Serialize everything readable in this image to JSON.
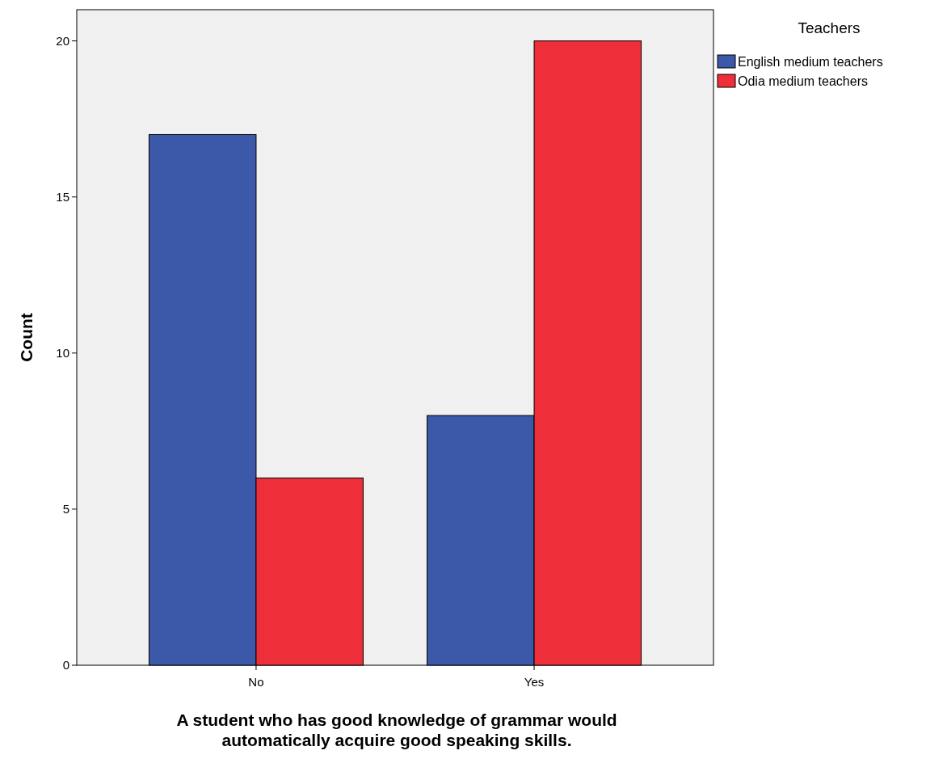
{
  "chart_data": {
    "type": "bar",
    "xlabel": "A student who has good knowledge of grammar would automatically acquire good speaking skills.",
    "ylabel": "Count",
    "legend_title": "Teachers",
    "legend": "top right",
    "categories": [
      "No",
      "Yes"
    ],
    "series": [
      {
        "name": "English medium teachers",
        "color": "#3c58a8",
        "values": [
          17,
          8
        ]
      },
      {
        "name": "Odia medium teachers",
        "color": "#ee2e38",
        "values": [
          6,
          20
        ]
      }
    ],
    "ylim": [
      0,
      21
    ],
    "yticks": [
      0,
      5,
      10,
      15,
      20
    ],
    "grid": false
  }
}
